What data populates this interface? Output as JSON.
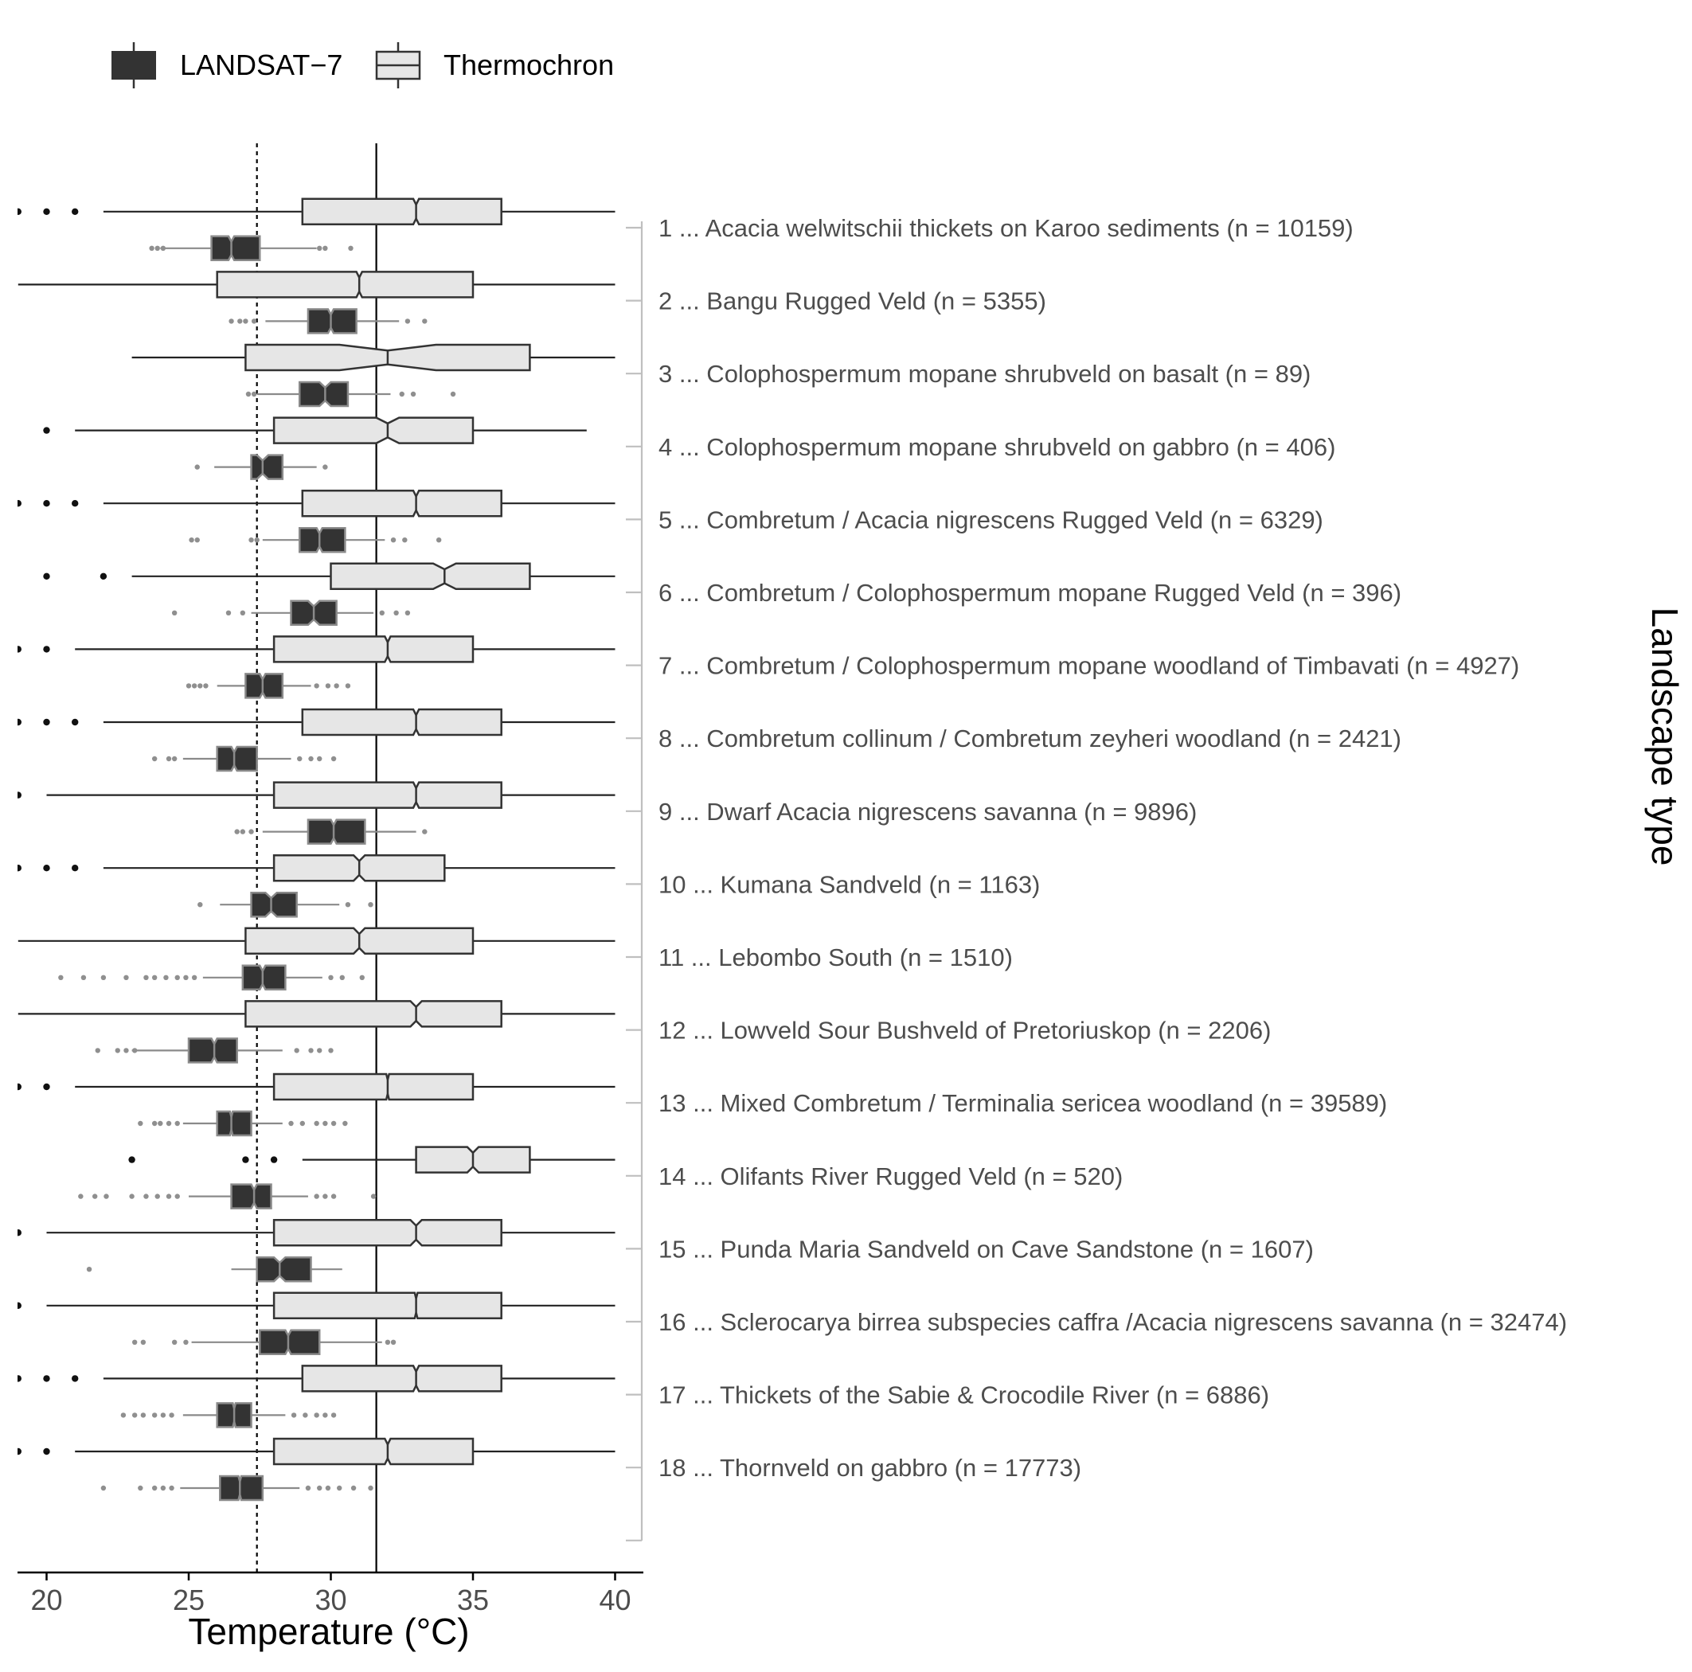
{
  "chart_data": {
    "type": "boxplot",
    "orientation": "horizontal",
    "xlabel": "Temperature (°C)",
    "right_label": "Landscape type",
    "xlim": [
      19,
      41
    ],
    "x_ticks": [
      20,
      25,
      30,
      35,
      40
    ],
    "x_tick_labels": [
      "20",
      "25",
      "30",
      "35",
      "40"
    ],
    "reference_lines": {
      "solid_x": 31.6,
      "dotted_x": 27.4
    },
    "grid": false,
    "legend_position": "top-left",
    "legend": [
      {
        "name": "LANDSAT−7",
        "fill": "#333333",
        "stroke": "#7a7a7a"
      },
      {
        "name": "Thermochron",
        "fill": "#e6e6e6",
        "stroke": "#333333"
      }
    ],
    "categories": [
      "1 ... Acacia welwitschii thickets on Karoo sediments (n = 10159)",
      "2 ... Bangu Rugged Veld (n = 5355)",
      "3 ... Colophospermum mopane shrubveld on basalt (n = 89)",
      "4 ... Colophospermum mopane shrubveld on gabbro (n = 406)",
      "5 ... Combretum / Acacia nigrescens Rugged Veld (n = 6329)",
      "6 ... Combretum / Colophospermum mopane Rugged Veld (n = 396)",
      "7 ... Combretum / Colophospermum mopane woodland of Timbavati (n = 4927)",
      "8 ... Combretum collinum / Combretum zeyheri woodland (n = 2421)",
      "9 ... Dwarf Acacia nigrescens savanna (n = 9896)",
      "10 ... Kumana Sandveld (n = 1163)",
      "11 ... Lebombo South (n = 1510)",
      "12 ... Lowveld Sour Bushveld of Pretoriuskop (n = 2206)",
      "13 ... Mixed Combretum / Terminalia sericea woodland (n = 39589)",
      "14 ... Olifants River Rugged Veld (n = 520)",
      "15 ... Punda Maria Sandveld on Cave Sandstone (n = 1607)",
      "16 ... Sclerocarya birrea subspecies caffra /Acacia nigrescens savanna (n = 32474)",
      "17 ... Thickets of the Sabie & Crocodile River (n = 6886)",
      "18 ... Thornveld on gabbro (n = 17773)"
    ],
    "series": [
      {
        "name": "Thermochron",
        "boxes": [
          {
            "whislo": 22,
            "q1": 29,
            "med": 33,
            "q3": 36,
            "whishi": 40,
            "notch": [
              32.9,
              33.1
            ],
            "outliers": [
              19,
              20,
              21
            ]
          },
          {
            "whislo": 19,
            "q1": 26,
            "med": 31,
            "q3": 35,
            "whishi": 40,
            "notch": [
              30.9,
              31.1
            ],
            "outliers": []
          },
          {
            "whislo": 23,
            "q1": 27,
            "med": 32,
            "q3": 37,
            "whishi": 40,
            "notch": [
              30.3,
              33.7
            ],
            "outliers": []
          },
          {
            "whislo": 21,
            "q1": 28,
            "med": 32,
            "q3": 35,
            "whishi": 39,
            "notch": [
              31.6,
              32.4
            ],
            "outliers": [
              20
            ]
          },
          {
            "whislo": 22,
            "q1": 29,
            "med": 33,
            "q3": 36,
            "whishi": 40,
            "notch": [
              32.9,
              33.1
            ],
            "outliers": [
              19,
              20,
              21
            ]
          },
          {
            "whislo": 23,
            "q1": 30,
            "med": 34,
            "q3": 37,
            "whishi": 40,
            "notch": [
              33.6,
              34.4
            ],
            "outliers": [
              20,
              22
            ]
          },
          {
            "whislo": 21,
            "q1": 28,
            "med": 32,
            "q3": 35,
            "whishi": 40,
            "notch": [
              31.9,
              32.1
            ],
            "outliers": [
              19,
              20
            ]
          },
          {
            "whislo": 22,
            "q1": 29,
            "med": 33,
            "q3": 36,
            "whishi": 40,
            "notch": [
              32.9,
              33.1
            ],
            "outliers": [
              19,
              20,
              21
            ]
          },
          {
            "whislo": 20,
            "q1": 28,
            "med": 33,
            "q3": 36,
            "whishi": 40,
            "notch": [
              32.9,
              33.1
            ],
            "outliers": [
              19
            ]
          },
          {
            "whislo": 22,
            "q1": 28,
            "med": 31,
            "q3": 34,
            "whishi": 40,
            "notch": [
              30.8,
              31.2
            ],
            "outliers": [
              19,
              20,
              21
            ]
          },
          {
            "whislo": 19,
            "q1": 27,
            "med": 31,
            "q3": 35,
            "whishi": 40,
            "notch": [
              30.8,
              31.2
            ],
            "outliers": []
          },
          {
            "whislo": 19,
            "q1": 27,
            "med": 33,
            "q3": 36,
            "whishi": 40,
            "notch": [
              32.8,
              33.2
            ],
            "outliers": []
          },
          {
            "whislo": 21,
            "q1": 28,
            "med": 32,
            "q3": 35,
            "whishi": 40,
            "notch": [
              31.95,
              32.05
            ],
            "outliers": [
              19,
              20
            ]
          },
          {
            "whislo": 29,
            "q1": 33,
            "med": 35,
            "q3": 37,
            "whishi": 40,
            "notch": [
              34.8,
              35.2
            ],
            "outliers": [
              23,
              27,
              28
            ]
          },
          {
            "whislo": 20,
            "q1": 28,
            "med": 33,
            "q3": 36,
            "whishi": 40,
            "notch": [
              32.8,
              33.2
            ],
            "outliers": [
              19
            ]
          },
          {
            "whislo": 20,
            "q1": 28,
            "med": 33,
            "q3": 36,
            "whishi": 40,
            "notch": [
              32.95,
              33.05
            ],
            "outliers": [
              19
            ]
          },
          {
            "whislo": 22,
            "q1": 29,
            "med": 33,
            "q3": 36,
            "whishi": 40,
            "notch": [
              32.9,
              33.1
            ],
            "outliers": [
              19,
              20,
              21
            ]
          },
          {
            "whislo": 21,
            "q1": 28,
            "med": 32,
            "q3": 35,
            "whishi": 40,
            "notch": [
              31.9,
              32.1
            ],
            "outliers": [
              19,
              20
            ]
          }
        ]
      },
      {
        "name": "LANDSAT−7",
        "boxes": [
          {
            "whislo": 24.0,
            "q1": 25.8,
            "med": 26.5,
            "q3": 27.5,
            "whishi": 29.5,
            "notch": [
              26.4,
              26.6
            ],
            "outliers": [
              23.7,
              23.9,
              24.1,
              29.6,
              29.8,
              30.7
            ]
          },
          {
            "whislo": 27.7,
            "q1": 29.2,
            "med": 30.0,
            "q3": 30.9,
            "whishi": 32.4,
            "notch": [
              29.9,
              30.1
            ],
            "outliers": [
              26.5,
              26.8,
              27.0,
              27.3,
              32.7,
              33.3
            ]
          },
          {
            "whislo": 27.4,
            "q1": 28.9,
            "med": 29.8,
            "q3": 30.6,
            "whishi": 32.1,
            "notch": [
              29.6,
              30.0
            ],
            "outliers": [
              27.1,
              27.3,
              32.5,
              32.9,
              34.3
            ]
          },
          {
            "whislo": 25.9,
            "q1": 27.2,
            "med": 27.6,
            "q3": 28.3,
            "whishi": 29.5,
            "notch": [
              27.4,
              27.8
            ],
            "outliers": [
              25.3,
              29.8
            ]
          },
          {
            "whislo": 27.6,
            "q1": 28.9,
            "med": 29.6,
            "q3": 30.5,
            "whishi": 31.9,
            "notch": [
              29.5,
              29.7
            ],
            "outliers": [
              25.1,
              25.3,
              27.2,
              27.4,
              32.2,
              32.6,
              33.8
            ]
          },
          {
            "whislo": 27.2,
            "q1": 28.6,
            "med": 29.4,
            "q3": 30.2,
            "whishi": 31.5,
            "notch": [
              29.2,
              29.6
            ],
            "outliers": [
              24.5,
              26.4,
              26.9,
              31.8,
              32.3,
              32.7
            ]
          },
          {
            "whislo": 26.0,
            "q1": 27.0,
            "med": 27.6,
            "q3": 28.3,
            "whishi": 29.3,
            "notch": [
              27.5,
              27.7
            ],
            "outliers": [
              25.0,
              25.2,
              25.4,
              25.6,
              29.5,
              29.9,
              30.2,
              30.6
            ]
          },
          {
            "whislo": 24.8,
            "q1": 26.0,
            "med": 26.6,
            "q3": 27.4,
            "whishi": 28.6,
            "notch": [
              26.5,
              26.7
            ],
            "outliers": [
              23.8,
              24.3,
              24.5,
              28.9,
              29.3,
              29.6,
              30.1
            ]
          },
          {
            "whislo": 27.6,
            "q1": 29.2,
            "med": 30.1,
            "q3": 31.2,
            "whishi": 33.0,
            "notch": [
              30.0,
              30.2
            ],
            "outliers": [
              26.7,
              26.9,
              27.2,
              33.3
            ]
          },
          {
            "whislo": 26.1,
            "q1": 27.2,
            "med": 27.9,
            "q3": 28.8,
            "whishi": 30.3,
            "notch": [
              27.7,
              28.1
            ],
            "outliers": [
              25.4,
              30.6,
              31.4
            ]
          },
          {
            "whislo": 25.5,
            "q1": 26.9,
            "med": 27.6,
            "q3": 28.4,
            "whishi": 29.7,
            "notch": [
              27.5,
              27.7
            ],
            "outliers": [
              20.5,
              21.3,
              22.0,
              22.8,
              23.5,
              23.8,
              24.2,
              24.6,
              24.9,
              25.2,
              30.0,
              30.4,
              31.1
            ]
          },
          {
            "whislo": 23.0,
            "q1": 25.0,
            "med": 25.9,
            "q3": 26.7,
            "whishi": 28.3,
            "notch": [
              25.8,
              26.0
            ],
            "outliers": [
              21.8,
              22.5,
              22.8,
              23.1,
              28.8,
              29.3,
              29.6,
              30.0
            ]
          },
          {
            "whislo": 24.8,
            "q1": 26.0,
            "med": 26.5,
            "q3": 27.2,
            "whishi": 28.3,
            "notch": [
              26.45,
              26.55
            ],
            "outliers": [
              23.3,
              23.8,
              24.0,
              24.3,
              24.6,
              28.6,
              29.0,
              29.5,
              29.8,
              30.1,
              30.5
            ]
          },
          {
            "whislo": 25.0,
            "q1": 26.5,
            "med": 27.3,
            "q3": 27.9,
            "whishi": 29.2,
            "notch": [
              27.2,
              27.4
            ],
            "outliers": [
              21.2,
              21.7,
              22.1,
              23.0,
              23.5,
              23.9,
              24.3,
              24.6,
              29.5,
              29.8,
              30.1,
              31.5
            ]
          },
          {
            "whislo": 26.5,
            "q1": 27.4,
            "med": 28.2,
            "q3": 29.3,
            "whishi": 30.4,
            "notch": [
              28.0,
              28.4
            ],
            "outliers": [
              21.5
            ]
          },
          {
            "whislo": 25.1,
            "q1": 27.5,
            "med": 28.5,
            "q3": 29.6,
            "whishi": 31.8,
            "notch": [
              28.4,
              28.6
            ],
            "outliers": [
              23.1,
              23.4,
              24.5,
              24.9,
              32.0,
              32.2
            ]
          },
          {
            "whislo": 24.8,
            "q1": 26.0,
            "med": 26.6,
            "q3": 27.2,
            "whishi": 28.4,
            "notch": [
              26.55,
              26.65
            ],
            "outliers": [
              22.7,
              23.1,
              23.4,
              23.8,
              24.1,
              24.4,
              28.7,
              29.1,
              29.5,
              29.8,
              30.1
            ]
          },
          {
            "whislo": 24.7,
            "q1": 26.1,
            "med": 26.8,
            "q3": 27.6,
            "whishi": 28.9,
            "notch": [
              26.75,
              26.85
            ],
            "outliers": [
              22.0,
              23.3,
              23.8,
              24.1,
              24.4,
              29.2,
              29.6,
              29.9,
              30.3,
              30.8,
              31.4
            ]
          }
        ]
      }
    ]
  }
}
